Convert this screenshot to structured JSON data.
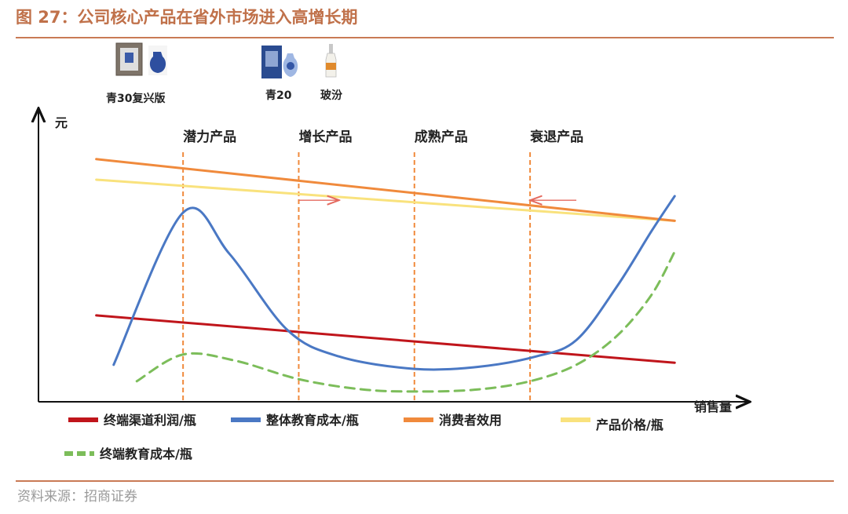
{
  "header": {
    "title": "图 27：公司核心产品在省外市场进入高增长期"
  },
  "footer": {
    "source": "资料来源：招商证券"
  },
  "products": [
    {
      "name": "青30复兴版"
    },
    {
      "name": "青20"
    },
    {
      "name": "玻汾"
    }
  ],
  "chart_data": {
    "type": "line",
    "xlabel": "销售量",
    "ylabel": "元",
    "phases": [
      "潜力产品",
      "增长产品",
      "成熟产品",
      "衰退产品"
    ],
    "series": [
      {
        "name": "终端渠道利润/瓶",
        "color": "#c0151b",
        "style": "solid",
        "x": [
          0,
          10
        ],
        "y": [
          4.2,
          1.9
        ]
      },
      {
        "name": "整体教育成本/瓶",
        "color": "#4a78c4",
        "style": "solid",
        "x": [
          0.3,
          1.5,
          2.3,
          3.3,
          4.2,
          5.5,
          6.6,
          7.6,
          8.3,
          9.0,
          9.6,
          10.0
        ],
        "y": [
          1.8,
          9.2,
          7.2,
          3.5,
          2.2,
          1.6,
          1.7,
          2.2,
          3.0,
          5.6,
          8.3,
          10.0
        ]
      },
      {
        "name": "消费者效用",
        "color": "#f08a3c",
        "style": "solid",
        "x": [
          0,
          10
        ],
        "y": [
          11.8,
          8.8
        ]
      },
      {
        "name": "产品价格/瓶",
        "color": "#f9e27d",
        "style": "solid",
        "x": [
          0,
          10
        ],
        "y": [
          10.8,
          8.8
        ]
      },
      {
        "name": "终端教育成本/瓶",
        "color": "#7cbd5a",
        "style": "dashed",
        "x": [
          0.7,
          1.5,
          2.4,
          3.5,
          4.6,
          5.6,
          6.6,
          7.5,
          8.3,
          9.0,
          9.6,
          10.0
        ],
        "y": [
          1.0,
          2.3,
          2.0,
          1.1,
          0.6,
          0.5,
          0.6,
          1.0,
          1.8,
          3.2,
          5.2,
          7.3
        ]
      }
    ],
    "phase_lines_x": [
      1.5,
      3.5,
      5.5,
      7.5
    ],
    "arrows": [
      {
        "x_from": 3.5,
        "x_to": 4.2,
        "y": 9.8
      },
      {
        "x_from": 8.3,
        "x_to": 7.5,
        "y": 9.8
      }
    ],
    "xlim": [
      -1.0,
      11.3
    ],
    "ylim": [
      0,
      14.5
    ],
    "grid": false,
    "legend_position": "bottom"
  }
}
